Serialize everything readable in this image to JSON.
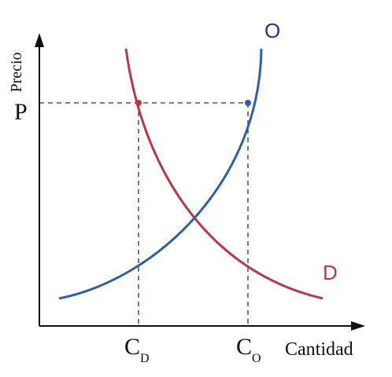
{
  "chart_data": {
    "type": "line",
    "title": "",
    "ylabel": "Precio",
    "xlabel": "Cantidad",
    "price_label": "P",
    "quantity_labels": {
      "demand": {
        "main": "C",
        "sub": "D"
      },
      "supply": {
        "main": "C",
        "sub": "O"
      }
    },
    "series": [
      {
        "name": "O",
        "color": "#2f5fa7"
      },
      {
        "name": "D",
        "color": "#b23a4a"
      }
    ],
    "colors": {
      "axis": "#111111",
      "guide": "#333333",
      "supply_label": "#2b2f8f",
      "demand_label": "#b23a4a"
    },
    "grid": false
  }
}
